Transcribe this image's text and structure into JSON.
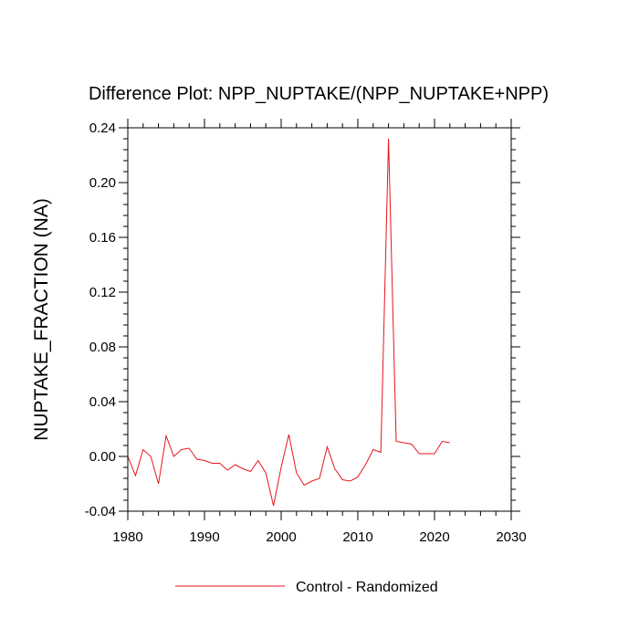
{
  "chart_data": {
    "type": "line",
    "title": "Difference Plot: NPP_NUPTAKE/(NPP_NUPTAKE+NPP)",
    "xlabel": "",
    "ylabel": "NUPTAKE_FRACTION  (NA)",
    "xlim": [
      1980,
      2030
    ],
    "ylim": [
      -0.04,
      0.24
    ],
    "xticks": [
      1980,
      1990,
      2000,
      2010,
      2020,
      2030
    ],
    "yticks": [
      -0.04,
      0.0,
      0.04,
      0.08,
      0.12,
      0.16,
      0.2,
      0.24
    ],
    "xtick_labels": [
      "1980",
      "1990",
      "2000",
      "2010",
      "2020",
      "2030"
    ],
    "ytick_labels": [
      "-0.04",
      "0.00",
      "0.04",
      "0.08",
      "0.12",
      "0.16",
      "0.20",
      "0.24"
    ],
    "grid": false,
    "legend": "bottom-center",
    "series": [
      {
        "name": "Control - Randomized",
        "color": "#e8151c",
        "x": [
          1980,
          1981,
          1982,
          1983,
          1984,
          1985,
          1986,
          1987,
          1988,
          1989,
          1990,
          1991,
          1992,
          1993,
          1994,
          1995,
          1996,
          1997,
          1998,
          1999,
          2000,
          2001,
          2002,
          2003,
          2004,
          2005,
          2006,
          2007,
          2008,
          2009,
          2010,
          2011,
          2012,
          2013,
          2014,
          2015,
          2016,
          2017,
          2018,
          2019,
          2020,
          2021,
          2022
        ],
        "y": [
          0.0,
          -0.014,
          0.005,
          0.0,
          -0.02,
          0.015,
          0.0,
          0.005,
          0.006,
          -0.002,
          -0.003,
          -0.005,
          -0.005,
          -0.01,
          -0.006,
          -0.009,
          -0.011,
          -0.003,
          -0.012,
          -0.036,
          -0.008,
          0.016,
          -0.012,
          -0.021,
          -0.018,
          -0.016,
          0.007,
          -0.009,
          -0.017,
          -0.018,
          -0.015,
          -0.006,
          0.005,
          0.003,
          0.232,
          0.011,
          0.01,
          0.009,
          0.002,
          0.002,
          0.002,
          0.011,
          0.01
        ]
      }
    ]
  }
}
